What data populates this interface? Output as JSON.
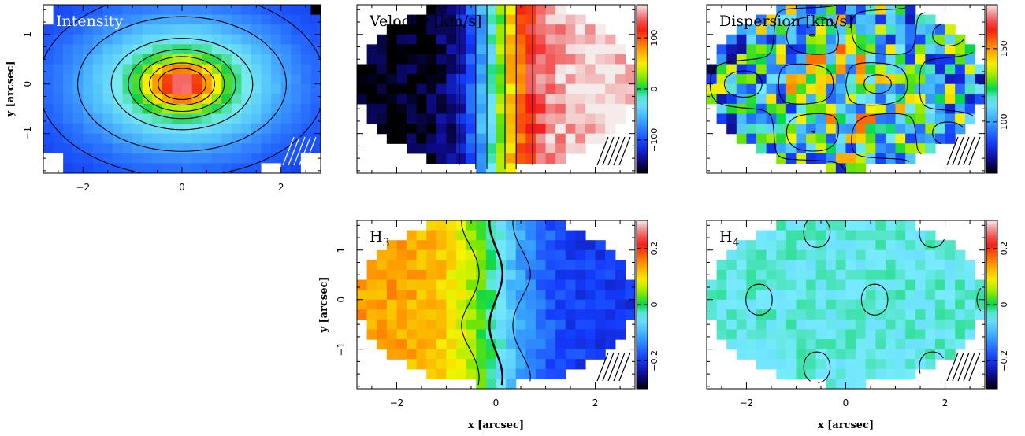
{
  "chart_data": [
    {
      "type": "heatmap",
      "panel": "intensity",
      "title": "Intensity",
      "title_color": "#ffffff",
      "xlim": [
        -2.8,
        2.8
      ],
      "ylim": [
        -1.8,
        1.6
      ],
      "xticks": [
        -2,
        0,
        2
      ],
      "yticks": [
        -1,
        0,
        1
      ],
      "xlabel": "",
      "ylabel": "y [arcsec]",
      "colormap": "blue-cyan-green-yellow-red-white",
      "colorbar": null,
      "contours": true,
      "beam_hatch": true
    },
    {
      "type": "heatmap",
      "panel": "velocity",
      "title": "Velocity [km/s]",
      "title_color": "#000000",
      "xlim": [
        -2.8,
        2.8
      ],
      "ylim": [
        -1.8,
        1.6
      ],
      "xticks": [
        -2,
        0,
        2
      ],
      "yticks": [
        -1,
        0,
        1
      ],
      "xlabel": "",
      "ylabel": "",
      "colormap": "rainbow",
      "colorbar": {
        "range": [
          -165,
          165
        ],
        "ticks": [
          -100,
          0,
          100
        ]
      },
      "contours": true,
      "beam_hatch": true
    },
    {
      "type": "heatmap",
      "panel": "dispersion",
      "title": "Dispersion [km/s]",
      "title_color": "#000000",
      "xlim": [
        -2.8,
        2.8
      ],
      "ylim": [
        -1.8,
        1.6
      ],
      "xticks": [
        -2,
        0,
        2
      ],
      "yticks": [
        -1,
        0,
        1
      ],
      "xlabel": "",
      "ylabel": "",
      "colormap": "rainbow",
      "colorbar": {
        "range": [
          65,
          180
        ],
        "ticks": [
          100,
          150
        ]
      },
      "contours": true,
      "beam_hatch": true
    },
    {
      "type": "heatmap",
      "panel": "h3",
      "title": "H",
      "title_sub": "3",
      "title_color": "#000000",
      "xlim": [
        -2.8,
        2.8
      ],
      "ylim": [
        -1.8,
        1.6
      ],
      "xticks": [
        -2,
        0,
        2
      ],
      "yticks": [
        -1,
        0,
        1
      ],
      "xlabel": "x [arcsec]",
      "ylabel": "y [arcsec]",
      "colormap": "rainbow",
      "colorbar": {
        "range": [
          -0.3,
          0.3
        ],
        "ticks": [
          -0.2,
          0,
          0.2
        ]
      },
      "contours": true,
      "beam_hatch": true
    },
    {
      "type": "heatmap",
      "panel": "h4",
      "title": "H",
      "title_sub": "4",
      "title_color": "#000000",
      "xlim": [
        -2.8,
        2.8
      ],
      "ylim": [
        -1.8,
        1.6
      ],
      "xticks": [
        -2,
        0,
        2
      ],
      "yticks": [
        -1,
        0,
        1
      ],
      "xlabel": "x [arcsec]",
      "ylabel": "",
      "colormap": "rainbow",
      "colorbar": {
        "range": [
          -0.3,
          0.3
        ],
        "ticks": [
          -0.2,
          0,
          0.2
        ]
      },
      "contours": true,
      "beam_hatch": true
    }
  ]
}
